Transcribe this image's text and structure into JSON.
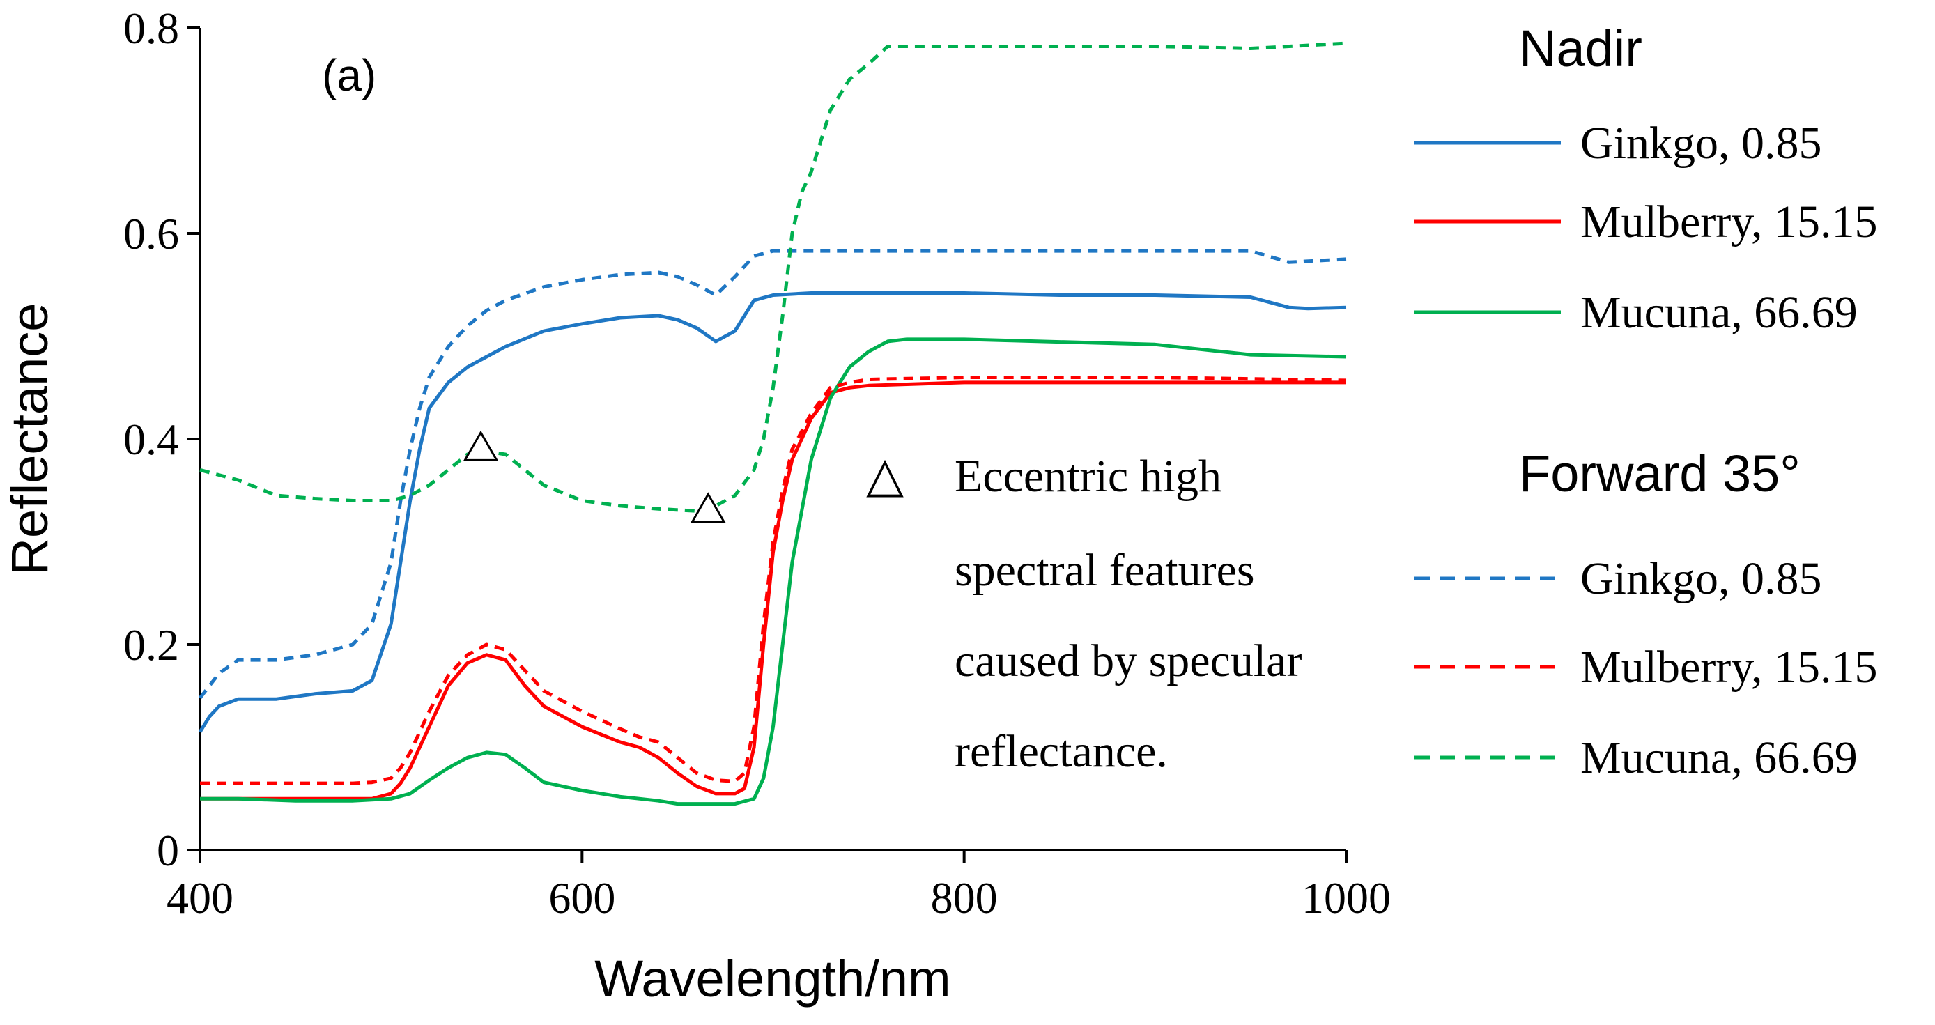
{
  "chart_data": {
    "type": "line",
    "panel_label": "(a)",
    "xlabel": "Wavelength/nm",
    "ylabel": "Reflectance",
    "xlim": [
      400,
      1000
    ],
    "ylim": [
      0,
      0.8
    ],
    "x_ticks": [
      400,
      600,
      800,
      1000
    ],
    "x_tick_labels": [
      "400",
      "600",
      "800",
      "1000"
    ],
    "y_ticks": [
      0,
      0.2,
      0.4,
      0.6,
      0.8
    ],
    "y_tick_labels": [
      "0",
      "0.2",
      "0.4",
      "0.6",
      "0.8"
    ],
    "grid": false,
    "legend_groups": [
      {
        "title": "Nadir",
        "style": "solid",
        "series_keys": [
          0,
          1,
          2
        ]
      },
      {
        "title": "Forward 35°",
        "style": "dashed",
        "series_keys": [
          3,
          4,
          5
        ]
      }
    ],
    "series": [
      {
        "name": "Ginkgo, 0.85",
        "group": "Nadir",
        "color": "#1F77C4",
        "dashed": false,
        "x": [
          400,
          405,
          410,
          420,
          440,
          460,
          480,
          490,
          500,
          505,
          510,
          515,
          520,
          530,
          540,
          550,
          560,
          580,
          600,
          620,
          640,
          650,
          660,
          670,
          680,
          690,
          700,
          720,
          750,
          800,
          850,
          900,
          950,
          970,
          980,
          1000
        ],
        "y": [
          0.115,
          0.13,
          0.14,
          0.147,
          0.147,
          0.152,
          0.155,
          0.165,
          0.22,
          0.28,
          0.34,
          0.39,
          0.43,
          0.455,
          0.47,
          0.48,
          0.49,
          0.505,
          0.512,
          0.518,
          0.52,
          0.516,
          0.508,
          0.495,
          0.505,
          0.535,
          0.54,
          0.542,
          0.542,
          0.542,
          0.54,
          0.54,
          0.538,
          0.528,
          0.527,
          0.528
        ]
      },
      {
        "name": "Mulberry, 15.15",
        "group": "Nadir",
        "color": "#FF0000",
        "dashed": false,
        "x": [
          400,
          420,
          450,
          480,
          490,
          500,
          505,
          510,
          520,
          530,
          540,
          550,
          560,
          570,
          580,
          600,
          620,
          630,
          640,
          650,
          660,
          670,
          680,
          685,
          690,
          695,
          700,
          705,
          710,
          720,
          730,
          740,
          750,
          800,
          900,
          1000
        ],
        "y": [
          0.05,
          0.05,
          0.05,
          0.05,
          0.05,
          0.055,
          0.065,
          0.08,
          0.12,
          0.16,
          0.182,
          0.19,
          0.185,
          0.16,
          0.14,
          0.12,
          0.105,
          0.1,
          0.09,
          0.075,
          0.062,
          0.055,
          0.055,
          0.06,
          0.1,
          0.2,
          0.29,
          0.34,
          0.38,
          0.42,
          0.445,
          0.45,
          0.452,
          0.455,
          0.455,
          0.455
        ]
      },
      {
        "name": "Mucuna, 66.69",
        "group": "Nadir",
        "color": "#00B050",
        "dashed": false,
        "x": [
          400,
          420,
          450,
          480,
          500,
          510,
          520,
          530,
          540,
          550,
          560,
          570,
          580,
          600,
          620,
          640,
          650,
          680,
          690,
          695,
          700,
          705,
          710,
          720,
          730,
          740,
          750,
          760,
          770,
          800,
          900,
          950,
          1000
        ],
        "y": [
          0.05,
          0.05,
          0.048,
          0.048,
          0.05,
          0.055,
          0.068,
          0.08,
          0.09,
          0.095,
          0.093,
          0.08,
          0.066,
          0.058,
          0.052,
          0.048,
          0.045,
          0.045,
          0.05,
          0.07,
          0.12,
          0.2,
          0.28,
          0.38,
          0.44,
          0.47,
          0.485,
          0.495,
          0.497,
          0.497,
          0.492,
          0.482,
          0.48
        ]
      },
      {
        "name": "Ginkgo, 0.85",
        "group": "Forward 35°",
        "color": "#1F77C4",
        "dashed": true,
        "x": [
          400,
          405,
          410,
          420,
          440,
          460,
          480,
          490,
          500,
          505,
          510,
          515,
          520,
          530,
          540,
          550,
          560,
          580,
          600,
          620,
          640,
          650,
          660,
          670,
          680,
          690,
          700,
          720,
          750,
          800,
          850,
          900,
          950,
          970,
          1000
        ],
        "y": [
          0.148,
          0.16,
          0.172,
          0.185,
          0.185,
          0.19,
          0.2,
          0.22,
          0.28,
          0.34,
          0.39,
          0.43,
          0.46,
          0.49,
          0.51,
          0.525,
          0.535,
          0.548,
          0.555,
          0.56,
          0.562,
          0.558,
          0.55,
          0.54,
          0.558,
          0.578,
          0.583,
          0.583,
          0.583,
          0.583,
          0.583,
          0.583,
          0.583,
          0.572,
          0.575
        ]
      },
      {
        "name": "Mulberry, 15.15",
        "group": "Forward 35°",
        "color": "#FF0000",
        "dashed": true,
        "x": [
          400,
          420,
          450,
          480,
          490,
          500,
          505,
          510,
          520,
          530,
          540,
          550,
          560,
          570,
          580,
          600,
          620,
          630,
          640,
          650,
          660,
          670,
          680,
          685,
          690,
          695,
          700,
          705,
          710,
          720,
          730,
          740,
          750,
          800,
          900,
          1000
        ],
        "y": [
          0.065,
          0.065,
          0.065,
          0.065,
          0.066,
          0.07,
          0.08,
          0.095,
          0.135,
          0.17,
          0.19,
          0.2,
          0.195,
          0.175,
          0.155,
          0.135,
          0.118,
          0.11,
          0.105,
          0.09,
          0.075,
          0.068,
          0.067,
          0.075,
          0.12,
          0.22,
          0.3,
          0.35,
          0.39,
          0.425,
          0.45,
          0.455,
          0.458,
          0.46,
          0.46,
          0.457
        ]
      },
      {
        "name": "Mucuna, 66.69",
        "group": "Forward 35°",
        "color": "#00B050",
        "dashed": true,
        "x": [
          400,
          420,
          440,
          460,
          480,
          500,
          510,
          520,
          530,
          540,
          550,
          560,
          570,
          580,
          600,
          620,
          640,
          660,
          670,
          680,
          690,
          695,
          700,
          705,
          710,
          715,
          720,
          725,
          730,
          740,
          750,
          760,
          780,
          800,
          850,
          900,
          950,
          1000
        ],
        "y": [
          0.37,
          0.36,
          0.345,
          0.342,
          0.34,
          0.34,
          0.345,
          0.355,
          0.37,
          0.385,
          0.388,
          0.385,
          0.37,
          0.355,
          0.34,
          0.335,
          0.332,
          0.33,
          0.335,
          0.345,
          0.37,
          0.4,
          0.45,
          0.52,
          0.6,
          0.64,
          0.66,
          0.69,
          0.72,
          0.75,
          0.765,
          0.782,
          0.782,
          0.782,
          0.782,
          0.782,
          0.78,
          0.785
        ]
      }
    ],
    "markers": [
      {
        "symbol": "triangle",
        "x": 547,
        "y": 0.39
      },
      {
        "symbol": "triangle",
        "x": 666,
        "y": 0.33
      }
    ],
    "annotation": {
      "symbol": "△",
      "lines": [
        "Eccentric high",
        "spectral features",
        "caused by specular",
        "reflectance."
      ]
    }
  }
}
